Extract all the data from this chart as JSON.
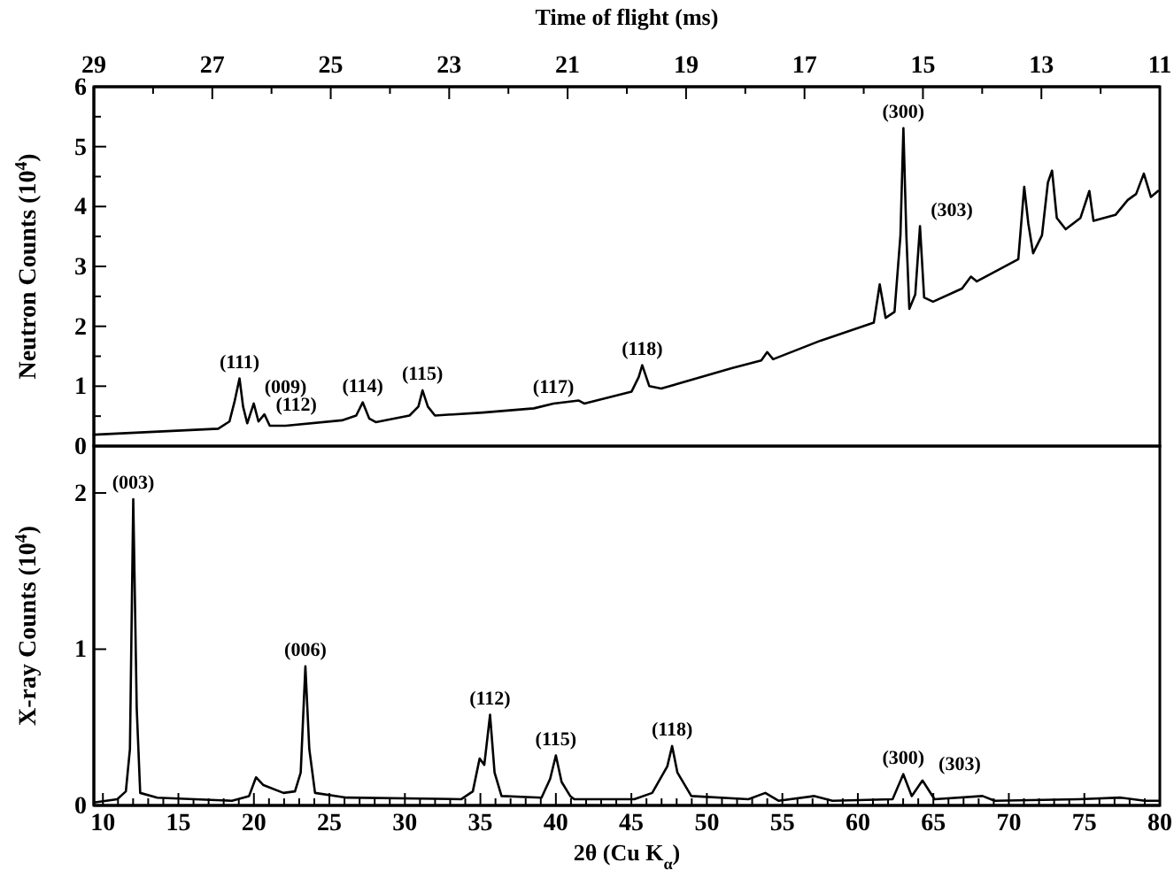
{
  "chart_data": [
    {
      "type": "line",
      "xlabel": "Time of flight (ms)",
      "ylabel": "Neutron Counts (10$^{4}$)",
      "xlim": [
        29,
        11
      ],
      "xticks": [
        29,
        {
          "value": 28,
          "label": null
        },
        27,
        {
          "value": 26,
          "label": null
        },
        25,
        {
          "value": 24,
          "label": null
        },
        23,
        {
          "value": 22,
          "label": null
        },
        21,
        {
          "value": 20,
          "label": null
        },
        19,
        {
          "value": 18,
          "label": null
        },
        17,
        {
          "value": 16,
          "label": null
        },
        15,
        {
          "value": 14,
          "label": null
        },
        13,
        {
          "value": 12,
          "label": null
        },
        11
      ],
      "ylim": [
        0,
        6
      ],
      "yticks": [
        0,
        {
          "value": 0.5,
          "label": null
        },
        1,
        {
          "value": 1.5,
          "label": null
        },
        2,
        {
          "value": 2.5,
          "label": null
        },
        3,
        {
          "value": 3.5,
          "label": null
        },
        4,
        {
          "value": 4.5,
          "label": null
        },
        5,
        {
          "value": 5.5,
          "label": null
        },
        6
      ],
      "grid": false,
      "marker": "none",
      "line_style": "solid",
      "series": [
        {
          "color": "#000000",
          "x": [
            29,
            26.9,
            26.71,
            26.62,
            26.54,
            26.48,
            26.41,
            26.3,
            26.22,
            26.12,
            26.03,
            25.76,
            24.81,
            24.57,
            24.46,
            24.35,
            24.24,
            23.67,
            23.52,
            23.45,
            23.36,
            23.24,
            22.43,
            21.57,
            21.24,
            20.81,
            20.72,
            19.92,
            19.8,
            19.74,
            19.62,
            19.42,
            18.23,
            17.73,
            17.63,
            17.53,
            16.73,
            15.83,
            15.73,
            15.63,
            15.48,
            15.38,
            15.33,
            15.28,
            15.23,
            15.13,
            15.05,
            14.98,
            14.83,
            14.34,
            14.19,
            14.09,
            13.39,
            13.29,
            13.22,
            13.14,
            12.99,
            12.89,
            12.82,
            12.74,
            12.59,
            12.34,
            12.19,
            12.12,
            11.75,
            11.54,
            11.4,
            11.27,
            11.15,
            11.03
          ],
          "values": [
            0.19,
            0.29,
            0.41,
            0.76,
            1.13,
            0.66,
            0.38,
            0.71,
            0.41,
            0.53,
            0.34,
            0.34,
            0.43,
            0.51,
            0.73,
            0.46,
            0.4,
            0.51,
            0.66,
            0.93,
            0.66,
            0.51,
            0.56,
            0.63,
            0.71,
            0.76,
            0.71,
            0.91,
            1.15,
            1.35,
            1.0,
            0.96,
            1.3,
            1.43,
            1.57,
            1.45,
            1.76,
            2.06,
            2.7,
            2.14,
            2.24,
            3.52,
            5.31,
            3.52,
            2.29,
            2.53,
            3.67,
            2.48,
            2.41,
            2.63,
            2.83,
            2.75,
            3.12,
            4.33,
            3.71,
            3.22,
            3.52,
            4.4,
            4.6,
            3.81,
            3.62,
            3.81,
            4.26,
            3.76,
            3.86,
            4.11,
            4.21,
            4.55,
            4.16,
            4.26
          ]
        }
      ],
      "annotations": [
        {
          "text": "(111)",
          "x": 26.54,
          "y": 1.13
        },
        {
          "text": "(009)",
          "x": 26.3,
          "y": 0.71
        },
        {
          "text": "(112)",
          "x": 26.12,
          "y": 0.53
        },
        {
          "text": "(114)",
          "x": 24.46,
          "y": 0.73
        },
        {
          "text": "(115)",
          "x": 23.45,
          "y": 0.93
        },
        {
          "text": "(117)",
          "x": 21.24,
          "y": 0.71
        },
        {
          "text": "(118)",
          "x": 19.74,
          "y": 1.35
        },
        {
          "text": "(300)",
          "x": 15.33,
          "y": 5.31
        },
        {
          "text": "(303)",
          "x": 15.05,
          "y": 3.67
        }
      ]
    },
    {
      "type": "line",
      "xlabel": "2θ (Cu K$_{α}$)",
      "ylabel": "X-ray Counts (10$^{4}$)",
      "xlim": [
        9.4,
        80
      ],
      "xticks": [
        10,
        {
          "value": 11,
          "label": null
        },
        {
          "value": 12,
          "label": null
        },
        {
          "value": 13,
          "label": null
        },
        {
          "value": 14,
          "label": null
        },
        15,
        {
          "value": 16,
          "label": null
        },
        {
          "value": 17,
          "label": null
        },
        {
          "value": 18,
          "label": null
        },
        {
          "value": 19,
          "label": null
        },
        20,
        {
          "value": 21,
          "label": null
        },
        {
          "value": 22,
          "label": null
        },
        {
          "value": 23,
          "label": null
        },
        {
          "value": 24,
          "label": null
        },
        25,
        {
          "value": 26,
          "label": null
        },
        {
          "value": 27,
          "label": null
        },
        {
          "value": 28,
          "label": null
        },
        {
          "value": 29,
          "label": null
        },
        30,
        {
          "value": 31,
          "label": null
        },
        {
          "value": 32,
          "label": null
        },
        {
          "value": 33,
          "label": null
        },
        {
          "value": 34,
          "label": null
        },
        35,
        {
          "value": 36,
          "label": null
        },
        {
          "value": 37,
          "label": null
        },
        {
          "value": 38,
          "label": null
        },
        {
          "value": 39,
          "label": null
        },
        40,
        {
          "value": 41,
          "label": null
        },
        {
          "value": 42,
          "label": null
        },
        {
          "value": 43,
          "label": null
        },
        {
          "value": 44,
          "label": null
        },
        45,
        {
          "value": 46,
          "label": null
        },
        {
          "value": 47,
          "label": null
        },
        {
          "value": 48,
          "label": null
        },
        {
          "value": 49,
          "label": null
        },
        50,
        {
          "value": 51,
          "label": null
        },
        {
          "value": 52,
          "label": null
        },
        {
          "value": 53,
          "label": null
        },
        {
          "value": 54,
          "label": null
        },
        55,
        {
          "value": 56,
          "label": null
        },
        {
          "value": 57,
          "label": null
        },
        {
          "value": 58,
          "label": null
        },
        {
          "value": 59,
          "label": null
        },
        60,
        {
          "value": 61,
          "label": null
        },
        {
          "value": 62,
          "label": null
        },
        {
          "value": 63,
          "label": null
        },
        {
          "value": 64,
          "label": null
        },
        65,
        {
          "value": 66,
          "label": null
        },
        {
          "value": 67,
          "label": null
        },
        {
          "value": 68,
          "label": null
        },
        {
          "value": 69,
          "label": null
        },
        70,
        {
          "value": 71,
          "label": null
        },
        {
          "value": 72,
          "label": null
        },
        {
          "value": 73,
          "label": null
        },
        {
          "value": 74,
          "label": null
        },
        75,
        {
          "value": 76,
          "label": null
        },
        {
          "value": 77,
          "label": null
        },
        {
          "value": 78,
          "label": null
        },
        {
          "value": 79,
          "label": null
        },
        80
      ],
      "ylim": [
        0,
        2.3
      ],
      "yticks": [
        0,
        1,
        2
      ],
      "grid": false,
      "marker": "none",
      "line_style": "solid",
      "series": [
        {
          "color": "#000000",
          "x": [
            9.5,
            10.95,
            11.52,
            11.79,
            12.01,
            12.24,
            12.47,
            13.6,
            18.55,
            19.68,
            20.14,
            20.63,
            21.96,
            22.72,
            23.1,
            23.41,
            23.67,
            24.05,
            26.14,
            33.74,
            34.5,
            34.95,
            35.26,
            35.64,
            35.94,
            36.4,
            39.05,
            39.62,
            40.0,
            40.38,
            40.95,
            41.22,
            45.19,
            46.38,
            47.38,
            47.7,
            48.05,
            48.97,
            52.75,
            53.87,
            54.74,
            57.13,
            58.32,
            62.3,
            63.01,
            63.57,
            64.28,
            65.08,
            68.26,
            69.06,
            74.63,
            77.41,
            79.01,
            79.9
          ],
          "values": [
            0.02,
            0.04,
            0.09,
            0.36,
            1.96,
            0.62,
            0.08,
            0.05,
            0.03,
            0.06,
            0.18,
            0.13,
            0.08,
            0.09,
            0.21,
            0.89,
            0.36,
            0.08,
            0.05,
            0.04,
            0.09,
            0.3,
            0.26,
            0.58,
            0.21,
            0.06,
            0.05,
            0.17,
            0.32,
            0.15,
            0.06,
            0.04,
            0.04,
            0.08,
            0.25,
            0.38,
            0.21,
            0.06,
            0.04,
            0.08,
            0.03,
            0.06,
            0.03,
            0.04,
            0.2,
            0.06,
            0.16,
            0.04,
            0.06,
            0.03,
            0.04,
            0.05,
            0.03,
            0.03
          ]
        }
      ],
      "annotations": [
        {
          "text": "(003)",
          "x": 12.01,
          "y": 1.96
        },
        {
          "text": "(006)",
          "x": 23.41,
          "y": 0.89
        },
        {
          "text": "(112)",
          "x": 35.64,
          "y": 0.58
        },
        {
          "text": "(115)",
          "x": 40.0,
          "y": 0.32
        },
        {
          "text": "(118)",
          "x": 47.7,
          "y": 0.38
        },
        {
          "text": "(300)",
          "x": 63.01,
          "y": 0.2
        },
        {
          "text": "(303)",
          "x": 64.28,
          "y": 0.16
        }
      ]
    }
  ]
}
